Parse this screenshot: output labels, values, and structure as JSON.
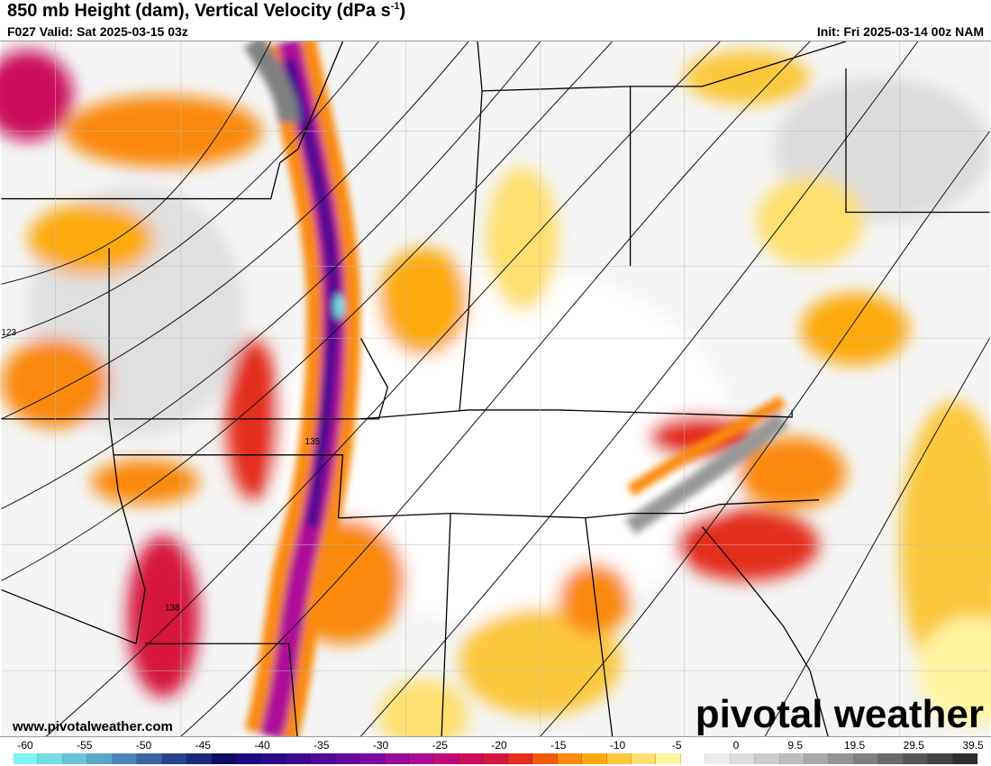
{
  "header": {
    "title": "850 mb Height (dam), Vertical Velocity (dPa s",
    "title_sup": "-1",
    "title_end": ")",
    "valid": "F027 Valid: Sat 2025-03-15 03z",
    "init": "Init: Fri 2025-03-14 00z NAM"
  },
  "map": {
    "contour_labels": [
      "123",
      "135",
      "138"
    ]
  },
  "branding": {
    "url": "www.pivotalweather.com",
    "logo": "pivotal weather"
  },
  "colorbar": {
    "labels": [
      "-60",
      "-55",
      "-50",
      "-45",
      "-40",
      "-35",
      "-30",
      "-25",
      "-20",
      "-15",
      "-10",
      "-5",
      "0",
      "9.5",
      "19.5",
      "29.5",
      "39.5"
    ],
    "colors": [
      "#7ef4f4",
      "#74dce6",
      "#68c2d8",
      "#5aa6c8",
      "#4a86b8",
      "#3a64a4",
      "#2a4490",
      "#1c2a7c",
      "#0e0e62",
      "#1e0a84",
      "#2c0a8c",
      "#3c0a90",
      "#500a94",
      "#660a98",
      "#7e0a9c",
      "#960a9c",
      "#ae0a98",
      "#c00a78",
      "#cc0e5c",
      "#d6163e",
      "#e42e1e",
      "#f25a0a",
      "#fa8a08",
      "#fcaa0e",
      "#fcc83a",
      "#fde070",
      "#fff4a0",
      "#ffffff",
      "#ececec",
      "#dcdcdc",
      "#cccccc",
      "#bcbcbc",
      "#a8a8a8",
      "#949494",
      "#808080",
      "#6a6a6a",
      "#565656",
      "#444444",
      "#2e2e2e"
    ]
  }
}
